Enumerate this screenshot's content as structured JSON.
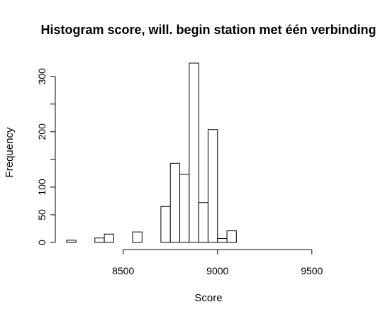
{
  "chart_data": {
    "type": "bar",
    "title": "Histogram score, will. begin station met één verbinding",
    "xlabel": "Score",
    "ylabel": "Frequency",
    "bin_width": 50,
    "xlim": [
      8200,
      9700
    ],
    "ylim": [
      0,
      325
    ],
    "x_ticks": [
      8500,
      9000,
      9500
    ],
    "x_tick_labels": [
      "8500",
      "9000",
      "9500"
    ],
    "y_ticks": [
      0,
      50,
      100,
      150,
      200,
      250,
      300
    ],
    "y_tick_labels": [
      "0",
      "50",
      "100",
      "",
      "200",
      "",
      "300"
    ],
    "bins": [
      {
        "start": 8200,
        "end": 8250,
        "count": 4
      },
      {
        "start": 8250,
        "end": 8300,
        "count": 0
      },
      {
        "start": 8300,
        "end": 8350,
        "count": 0
      },
      {
        "start": 8350,
        "end": 8400,
        "count": 8
      },
      {
        "start": 8400,
        "end": 8450,
        "count": 15
      },
      {
        "start": 8450,
        "end": 8500,
        "count": 0
      },
      {
        "start": 8500,
        "end": 8550,
        "count": 0
      },
      {
        "start": 8550,
        "end": 8600,
        "count": 19
      },
      {
        "start": 8600,
        "end": 8650,
        "count": 0
      },
      {
        "start": 8650,
        "end": 8700,
        "count": 0
      },
      {
        "start": 8700,
        "end": 8750,
        "count": 65
      },
      {
        "start": 8750,
        "end": 8800,
        "count": 143
      },
      {
        "start": 8800,
        "end": 8850,
        "count": 123
      },
      {
        "start": 8850,
        "end": 8900,
        "count": 324
      },
      {
        "start": 8900,
        "end": 8950,
        "count": 72
      },
      {
        "start": 8950,
        "end": 9000,
        "count": 204
      },
      {
        "start": 9000,
        "end": 9050,
        "count": 7
      },
      {
        "start": 9050,
        "end": 9100,
        "count": 21
      }
    ],
    "grid": false,
    "legend": "none"
  }
}
